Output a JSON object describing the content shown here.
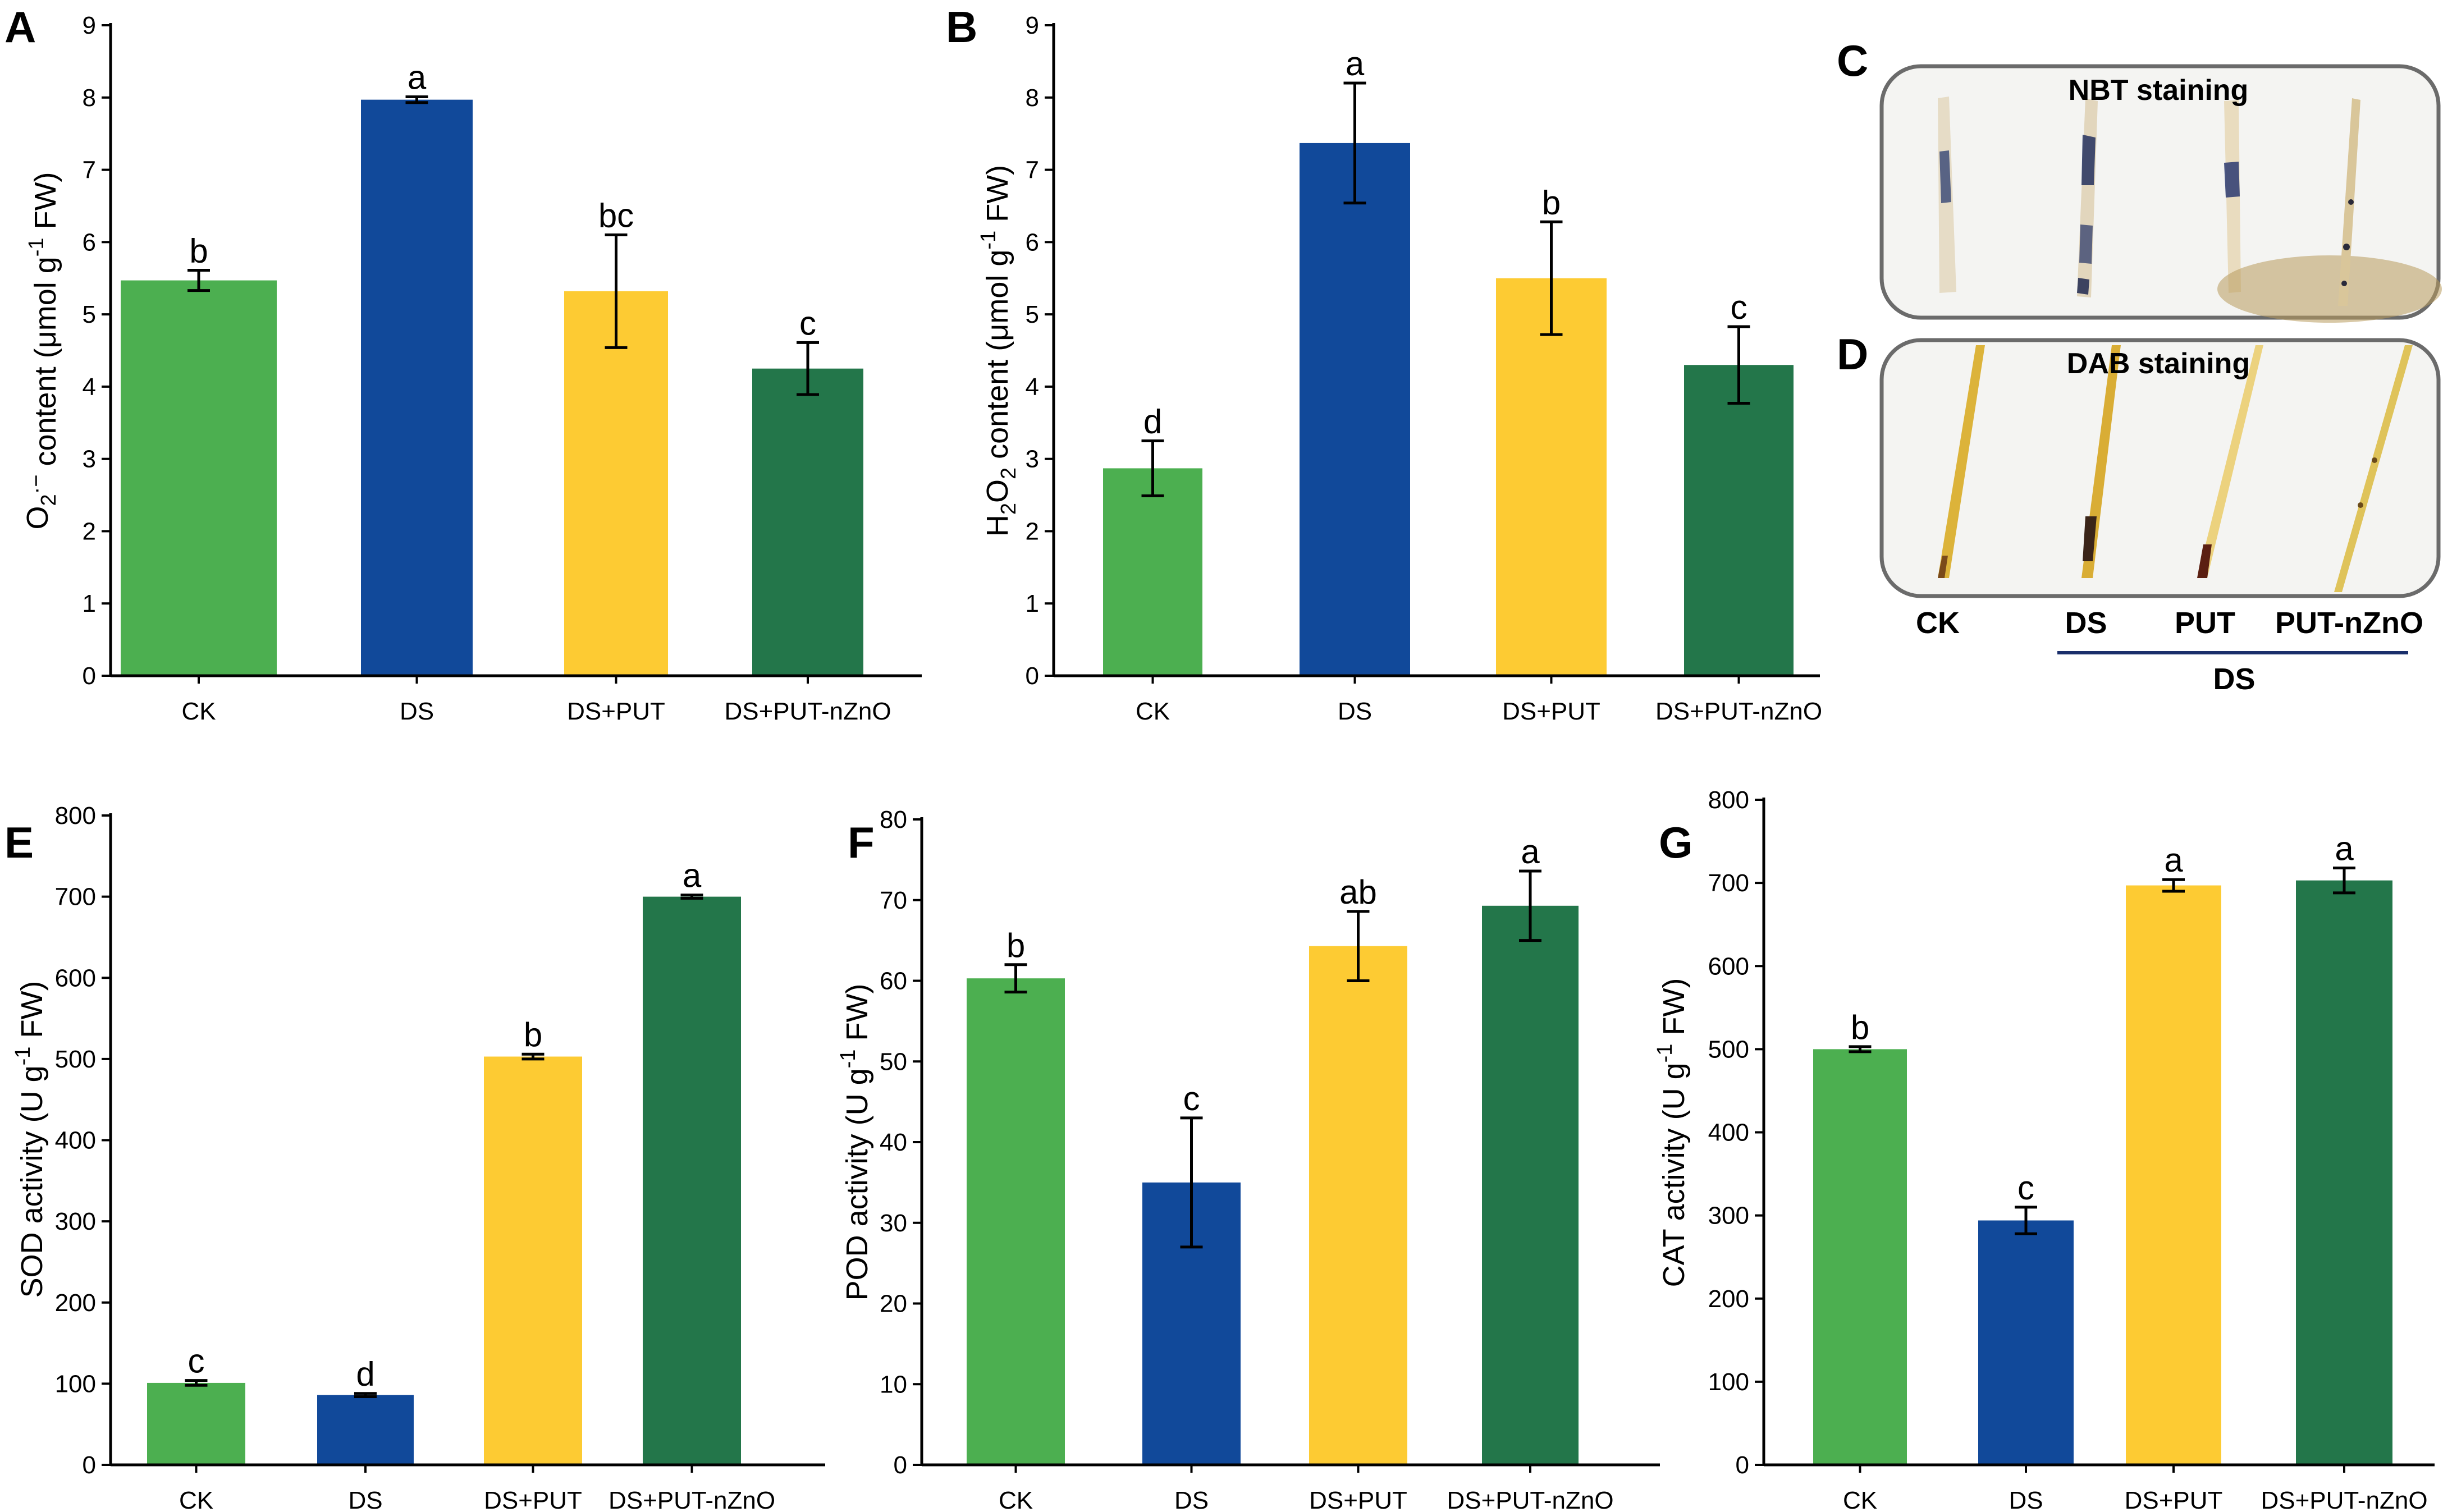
{
  "colors": {
    "CK": "#4caf50",
    "DS": "#11499a",
    "DS+PUT": "#fdcb33",
    "DS+PUT-nZnO": "#23764a"
  },
  "chart_data": [
    {
      "panel": "A",
      "type": "bar",
      "categories": [
        "CK",
        "DS",
        "DS+PUT",
        "DS+PUT-nZnO"
      ],
      "values": [
        5.47,
        7.97,
        5.32,
        4.25
      ],
      "errors": [
        0.14,
        0.04,
        0.78,
        0.36
      ],
      "letters": [
        "b",
        "a",
        "bc",
        "c"
      ],
      "ylabel_parts": [
        "O",
        "2",
        "·−",
        " content (μmol g",
        "-1",
        " FW)"
      ],
      "ylim": [
        0,
        9
      ],
      "yticks": [
        0,
        1,
        2,
        3,
        4,
        5,
        6,
        7,
        8,
        9
      ]
    },
    {
      "panel": "B",
      "type": "bar",
      "categories": [
        "CK",
        "DS",
        "DS+PUT",
        "DS+PUT-nZnO"
      ],
      "values": [
        2.87,
        7.37,
        5.5,
        4.3
      ],
      "errors": [
        0.38,
        0.83,
        0.78,
        0.53
      ],
      "letters": [
        "d",
        "a",
        "b",
        "c"
      ],
      "ylabel_parts": [
        "H",
        "2",
        "O",
        "2",
        " content (μmol g",
        "-1",
        " FW)"
      ],
      "ylim": [
        0,
        9
      ],
      "yticks": [
        0,
        1,
        2,
        3,
        4,
        5,
        6,
        7,
        8,
        9
      ]
    },
    {
      "panel": "E",
      "type": "bar",
      "categories": [
        "CK",
        "DS",
        "DS+PUT",
        "DS+PUT-nZnO"
      ],
      "values": [
        101,
        86,
        503,
        700
      ],
      "errors": [
        3,
        2,
        3,
        2
      ],
      "letters": [
        "c",
        "d",
        "b",
        "a"
      ],
      "ylabel_parts": [
        "SOD activity (U g",
        "-1",
        " FW)"
      ],
      "ylim": [
        0,
        800
      ],
      "yticks": [
        0,
        100,
        200,
        300,
        400,
        500,
        600,
        700,
        800
      ]
    },
    {
      "panel": "F",
      "type": "bar",
      "categories": [
        "CK",
        "DS",
        "DS+PUT",
        "DS+PUT-nZnO"
      ],
      "values": [
        60.3,
        35,
        64.3,
        69.3
      ],
      "errors": [
        1.7,
        8,
        4.3,
        4.3
      ],
      "letters": [
        "b",
        "c",
        "ab",
        "a"
      ],
      "ylabel_parts": [
        "POD activity (U g",
        "-1",
        " FW)"
      ],
      "ylim": [
        0,
        80
      ],
      "yticks": [
        0,
        10,
        20,
        30,
        40,
        50,
        60,
        70,
        80
      ]
    },
    {
      "panel": "G",
      "type": "bar",
      "categories": [
        "CK",
        "DS",
        "DS+PUT",
        "DS+PUT-nZnO"
      ],
      "values": [
        500,
        294,
        697,
        703
      ],
      "errors": [
        3,
        16,
        7,
        15
      ],
      "letters": [
        "b",
        "c",
        "a",
        "a"
      ],
      "ylabel_parts": [
        "CAT activity (U g",
        "-1",
        " FW)"
      ],
      "ylim": [
        0,
        800
      ],
      "yticks": [
        0,
        100,
        200,
        300,
        400,
        500,
        600,
        700,
        800
      ]
    }
  ],
  "photo_panels": {
    "C": {
      "letter": "C",
      "title": "NBT staining"
    },
    "D": {
      "letter": "D",
      "title": "DAB staining"
    },
    "labels": [
      "CK",
      "DS",
      "PUT",
      "PUT-nZnO"
    ],
    "group_label": "DS"
  }
}
